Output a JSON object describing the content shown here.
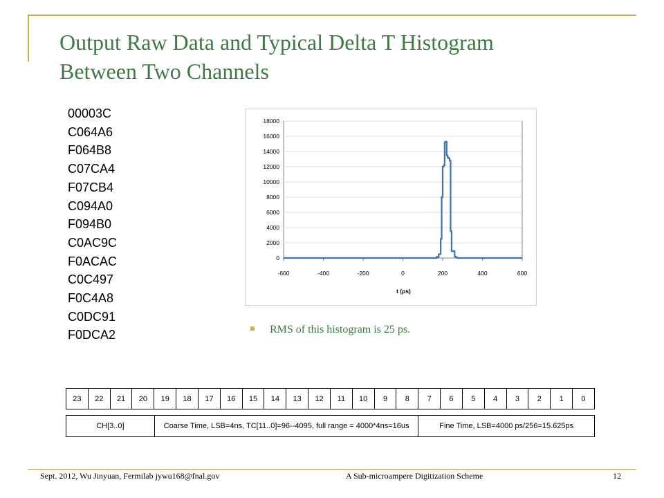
{
  "title": {
    "line1": "Output Raw Data and Typical Delta T Histogram",
    "line2": "Between Two Channels"
  },
  "raw_data": [
    "00003C",
    "C064A6",
    "F064B8",
    "C07CA4",
    "F07CB4",
    "C094A0",
    "F094B0",
    "C0AC9C",
    "F0ACAC",
    "C0C497",
    "F0C4A8",
    "C0DC91",
    "F0DCA2"
  ],
  "bullet": "RMS of this histogram is 25 ps.",
  "colors": {
    "accent": "#c9b14f",
    "title": "#3f7a45",
    "line": "#3d72b4"
  },
  "bits": [
    "23",
    "22",
    "21",
    "20",
    "19",
    "18",
    "17",
    "16",
    "15",
    "14",
    "13",
    "12",
    "11",
    "10",
    "9",
    "8",
    "7",
    "6",
    "5",
    "4",
    "3",
    "2",
    "1",
    "0"
  ],
  "fields": [
    {
      "label": "CH[3..0]",
      "bits": 4
    },
    {
      "label": "Coarse Time, LSB=4ns, TC[11..0]=96--4095, full range = 4000*4ns=16us",
      "bits": 12
    },
    {
      "label": "Fine Time, LSB=4000 ps/256=15.625ps",
      "bits": 8
    }
  ],
  "footer": {
    "left": "Sept. 2012, Wu Jinyuan, Fermilab jywu168@fnal.gov",
    "center": "A Sub-microampere Digitization Scheme",
    "page": "12"
  },
  "chart_data": {
    "type": "line",
    "xlabel": "t (ps)",
    "ylabel": "",
    "xlim": [
      -600,
      600
    ],
    "ylim": [
      0,
      18000
    ],
    "xticks": [
      -600,
      -400,
      -200,
      0,
      200,
      400,
      600
    ],
    "yticks": [
      0,
      2000,
      4000,
      6000,
      8000,
      10000,
      12000,
      14000,
      16000,
      18000
    ],
    "grid": "horizontal",
    "legend": "none",
    "series": [
      {
        "x": [
          -600,
          160,
          170,
          180,
          190,
          195,
          200,
          205,
          210,
          215,
          220,
          225,
          230,
          235,
          240,
          245,
          250,
          255,
          260,
          265,
          270,
          275,
          280,
          300,
          600
        ],
        "y": [
          0,
          0,
          150,
          500,
          2500,
          8000,
          12000,
          12200,
          15200,
          15300,
          13500,
          13200,
          13100,
          12800,
          3500,
          900,
          900,
          900,
          200,
          100,
          50,
          0,
          0,
          0,
          0
        ]
      }
    ]
  }
}
